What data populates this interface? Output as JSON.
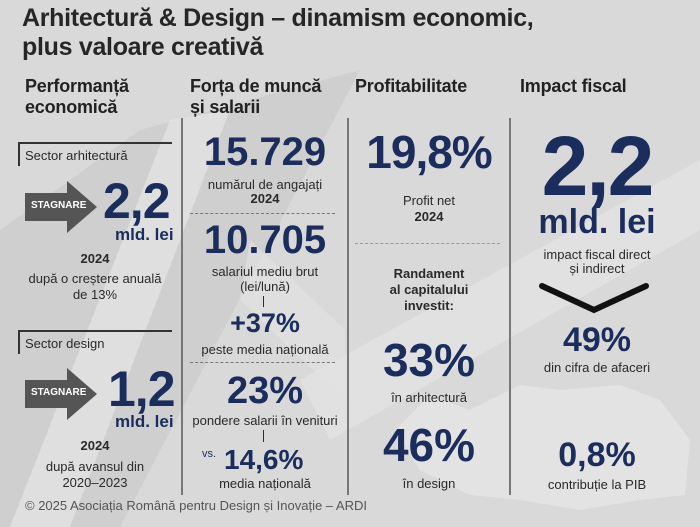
{
  "title": {
    "line1": "Arhitectură & Design – dinamism economic,",
    "line2": "plus valoare creativă"
  },
  "colors": {
    "navy": "#1b2d5c",
    "background": "#d9d9d9",
    "arrow": "#555555"
  },
  "economic": {
    "header_line1": "Performanță",
    "header_line2": "economică",
    "architecture": {
      "label": "Sector arhitectură",
      "badge": "STAGNARE",
      "value": "2,2",
      "unit": "mld. lei",
      "year": "2024",
      "note_line1": "după o creștere anuală",
      "note_line2": "de 13%"
    },
    "design": {
      "label": "Sector design",
      "badge": "STAGNARE",
      "value": "1,2",
      "unit": "mld. lei",
      "year": "2024",
      "note_line1": "după avansul din",
      "note_line2": "2020–2023"
    }
  },
  "workforce": {
    "header_line1": "Forța de muncă",
    "header_line2": "și salarii",
    "employees": {
      "value": "15.729",
      "label": "numărul de angajați",
      "year": "2024"
    },
    "salary": {
      "value": "10.705",
      "label_line1": "salariul mediu brut",
      "label_line2": "(lei/lună)"
    },
    "above_avg": {
      "value": "+37%",
      "label": "peste media națională"
    },
    "share": {
      "value": "23%",
      "label": "pondere salarii în venituri"
    },
    "national": {
      "prefix": "vs.",
      "value": "14,6%",
      "label": "media națională"
    }
  },
  "profit": {
    "header": "Profitabilitate",
    "net": {
      "value": "19,8%",
      "label": "Profit net",
      "year": "2024"
    },
    "roi_line1": "Randament",
    "roi_line2": "al capitalului",
    "roi_line3": "investit:",
    "architecture": {
      "value": "33%",
      "label": "în arhitectură"
    },
    "design": {
      "value": "46%",
      "label": "în design"
    }
  },
  "fiscal": {
    "header": "Impact fiscal",
    "total": {
      "value": "2,2",
      "unit": "mld. lei",
      "label_line1": "impact fiscal direct",
      "label_line2": "și indirect"
    },
    "turnover": {
      "value": "49%",
      "label": "din cifra de afaceri"
    },
    "gdp": {
      "value": "0,8%",
      "label": "contribuție la PIB"
    }
  },
  "footer": "© 2025 Asociația Română pentru Design și Inovație – ARDI"
}
